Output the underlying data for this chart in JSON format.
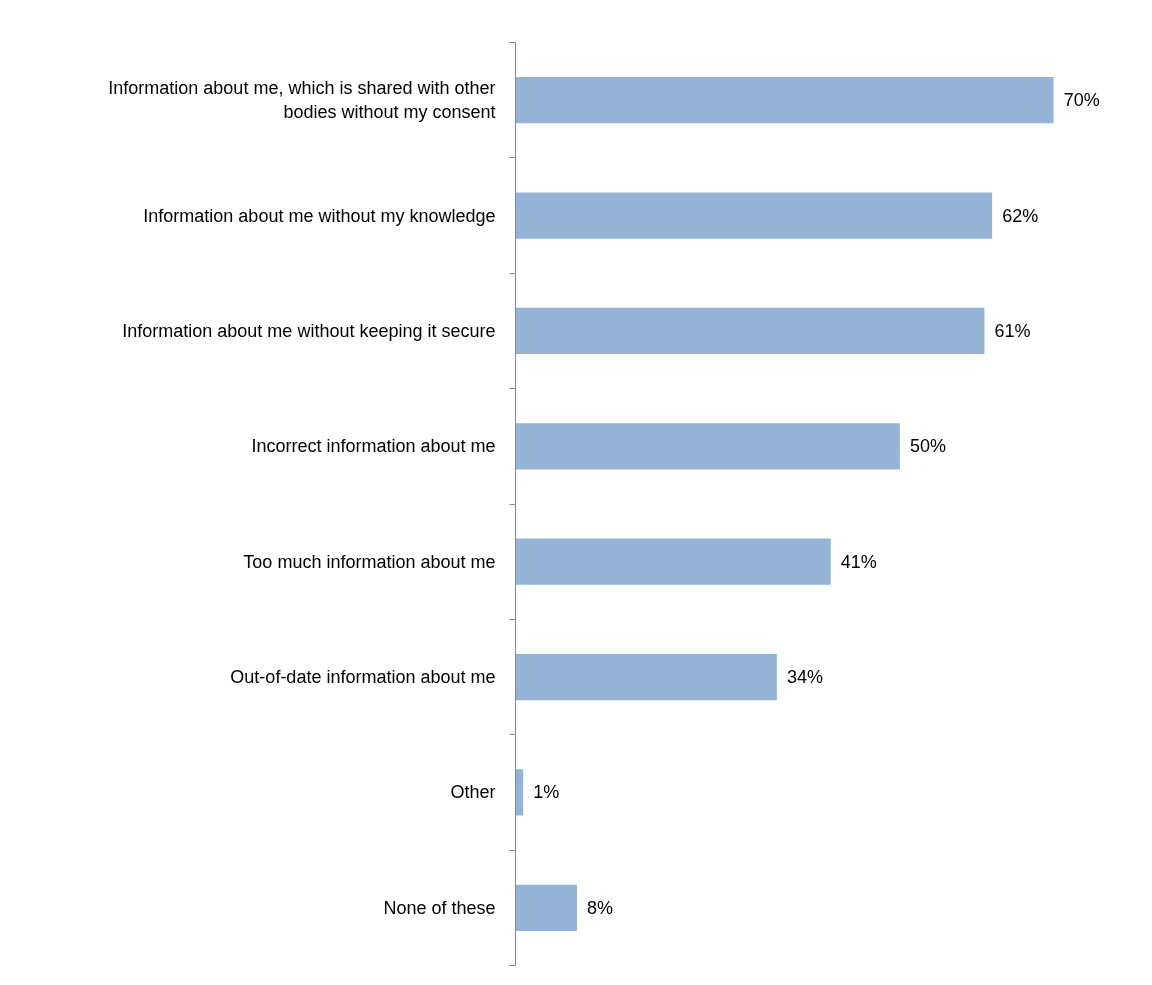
{
  "chart_data": {
    "type": "bar",
    "orientation": "horizontal",
    "categories": [
      "Information about me, which is shared with other bodies without my consent",
      "Information about me without my knowledge",
      "Information about me without keeping it secure",
      "Incorrect information about me",
      "Too much information about me",
      "Out-of-date information about me",
      "Other",
      "None of these"
    ],
    "values": [
      70,
      62,
      61,
      50,
      41,
      34,
      1,
      8
    ],
    "value_labels": [
      "70%",
      "62%",
      "61%",
      "50%",
      "41%",
      "34%",
      "1%",
      "8%"
    ],
    "color": "#95b3d7",
    "grid": false,
    "tick_labels": "y"
  }
}
